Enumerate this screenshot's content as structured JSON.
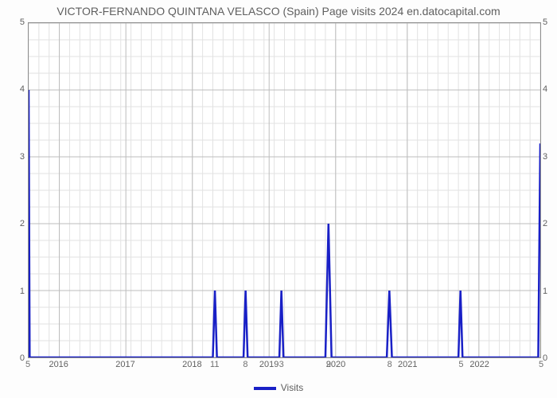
{
  "chart": {
    "type": "line",
    "title": "VICTOR-FERNANDO QUINTANA VELASCO (Spain) Page visits 2024 en.datocapital.com",
    "title_fontsize": 14,
    "title_color": "#5f5f5f",
    "background_color": "#ffffff",
    "plot_border_color": "#8e8e8e",
    "grid": {
      "major_color": "#bcbcbc",
      "minor_color": "#e2e2e2",
      "major_width": 1,
      "minor_width": 1
    },
    "series": {
      "name": "Visits",
      "color": "#1920c6",
      "line_width": 2.5,
      "points_x": [
        0,
        0.2,
        36,
        36.4,
        36.8,
        42,
        42.4,
        42.8,
        49,
        49.4,
        49.8,
        58,
        58.6,
        59.2,
        70,
        70.5,
        71,
        84,
        84.4,
        84.8,
        99.6,
        100
      ],
      "points_y": [
        4.0,
        0,
        0,
        1.0,
        0,
        0,
        1.0,
        0,
        0,
        1.0,
        0,
        0,
        2.0,
        0,
        0,
        1.0,
        0,
        0,
        1.0,
        0,
        0,
        3.2
      ]
    },
    "x_axis": {
      "domain": [
        0,
        100
      ],
      "year_labels": [
        {
          "pos": 6,
          "text": "2016"
        },
        {
          "pos": 19,
          "text": "2017"
        },
        {
          "pos": 32,
          "text": "2018"
        },
        {
          "pos": 47,
          "text": "2019"
        },
        {
          "pos": 60,
          "text": "2020"
        },
        {
          "pos": 74,
          "text": "2021"
        },
        {
          "pos": 88,
          "text": "2022"
        }
      ],
      "annotations": [
        {
          "pos": 0,
          "text": "5"
        },
        {
          "pos": 36.4,
          "text": "11"
        },
        {
          "pos": 42.4,
          "text": "8"
        },
        {
          "pos": 49.4,
          "text": "3"
        },
        {
          "pos": 58.6,
          "text": "9"
        },
        {
          "pos": 70.5,
          "text": "8"
        },
        {
          "pos": 84.4,
          "text": "5"
        },
        {
          "pos": 100,
          "text": "5"
        }
      ],
      "minor_step": 2
    },
    "y_axis": {
      "min": 0,
      "max": 5,
      "major_step": 1,
      "minor_step": 0.25,
      "left_ticks": [
        0,
        1,
        2,
        3,
        4,
        5
      ],
      "right_ticks": [
        0,
        1,
        2,
        3,
        4,
        5
      ]
    },
    "legend": {
      "label": "Visits",
      "swatch_color": "#1920c6"
    }
  }
}
